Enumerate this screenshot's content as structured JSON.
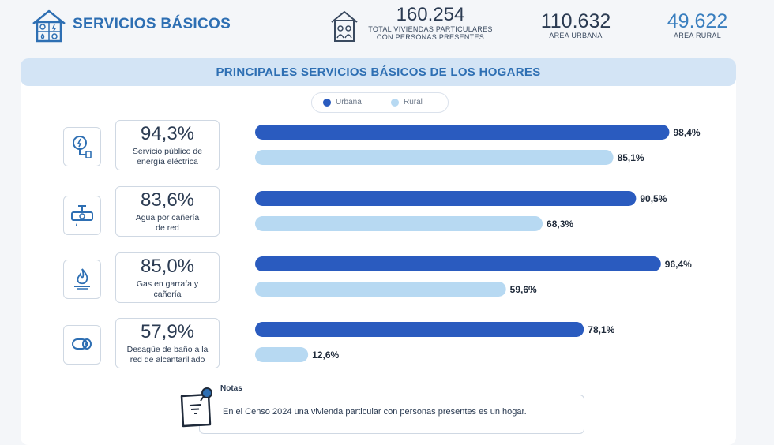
{
  "header": {
    "title": "SERVICIOS BÁSICOS",
    "total": {
      "value": "160.254",
      "label_line1": "TOTAL VIVIENDAS PARTICULARES",
      "label_line2": "CON PERSONAS PRESENTES"
    },
    "urban": {
      "value": "110.632",
      "label": "ÁREA URBANA"
    },
    "rural": {
      "value": "49.622",
      "label": "ÁREA RURAL"
    }
  },
  "banner": "PRINCIPALES SERVICIOS BÁSICOS DE LOS HOGARES",
  "legend": {
    "urban": "Urbana",
    "rural": "Rural"
  },
  "colors": {
    "urban": "#2a5bbf",
    "rural": "#b7d9f2",
    "accent": "#2e6fb3"
  },
  "services": [
    {
      "icon": "electricity-icon",
      "total": "94,3%",
      "desc_line1": "Servicio público de",
      "desc_line2": "energía eléctrica"
    },
    {
      "icon": "water-pipe-icon",
      "total": "83,6%",
      "desc_line1": "Agua por cañería",
      "desc_line2": "de red"
    },
    {
      "icon": "gas-flame-icon",
      "total": "85,0%",
      "desc_line1": "Gas en garrafa y",
      "desc_line2": "cañería"
    },
    {
      "icon": "sewer-pipe-icon",
      "total": "57,9%",
      "desc_line1": "Desagüe de baño a la",
      "desc_line2": "red de alcantarillado"
    }
  ],
  "chart_data": {
    "type": "bar",
    "orientation": "horizontal",
    "categories": [
      "Servicio público de energía eléctrica",
      "Agua por cañería de red",
      "Gas en garrafa y cañería",
      "Desagüe de baño a la red de alcantarillado"
    ],
    "series": [
      {
        "name": "Urbana",
        "values": [
          98.4,
          90.5,
          96.4,
          78.1
        ],
        "labels": [
          "98,4%",
          "90,5%",
          "96,4%",
          "78,1%"
        ]
      },
      {
        "name": "Rural",
        "values": [
          85.1,
          68.3,
          59.6,
          12.6
        ],
        "labels": [
          "85,1%",
          "68,3%",
          "59,6%",
          "12,6%"
        ]
      }
    ],
    "xlim": [
      0,
      100
    ],
    "legend_position": "top-center",
    "grid": false
  },
  "notes": {
    "label": "Notas",
    "text": "En el Censo 2024 una vivienda particular con personas presentes es un hogar."
  }
}
